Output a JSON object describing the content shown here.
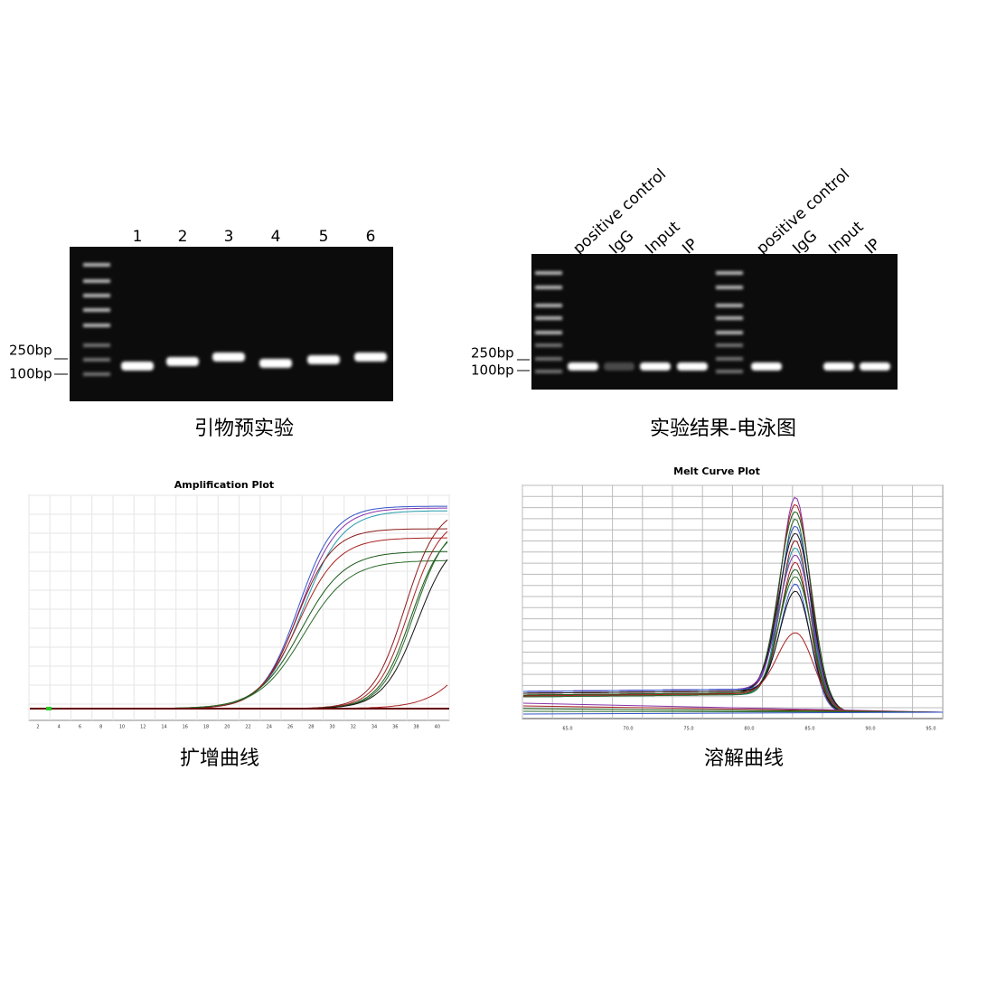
{
  "panels": {
    "primer_test": {
      "lanes": [
        "1",
        "2",
        "3",
        "4",
        "5",
        "6"
      ],
      "markers": [
        "250bp",
        "100bp"
      ],
      "caption": "引物预实验"
    },
    "gel_result": {
      "lanes": [
        "positive control",
        "IgG",
        "Input",
        "IP",
        "positive control",
        "IgG",
        "Input",
        "IP"
      ],
      "markers": [
        "250bp",
        "100bp"
      ],
      "caption": "实验结果-电泳图"
    },
    "amplification": {
      "title": "Amplification Plot",
      "xticks": [
        2,
        4,
        6,
        8,
        10,
        12,
        14,
        16,
        18,
        20,
        22,
        24,
        26,
        28,
        30,
        32,
        34,
        36,
        38,
        40
      ],
      "caption": "扩增曲线"
    },
    "melt": {
      "title": "Melt Curve Plot",
      "xticks": [
        "65.0",
        "70.0",
        "75.0",
        "80.0",
        "85.0",
        "90.0",
        "95.0"
      ],
      "caption": "溶解曲线"
    }
  }
}
